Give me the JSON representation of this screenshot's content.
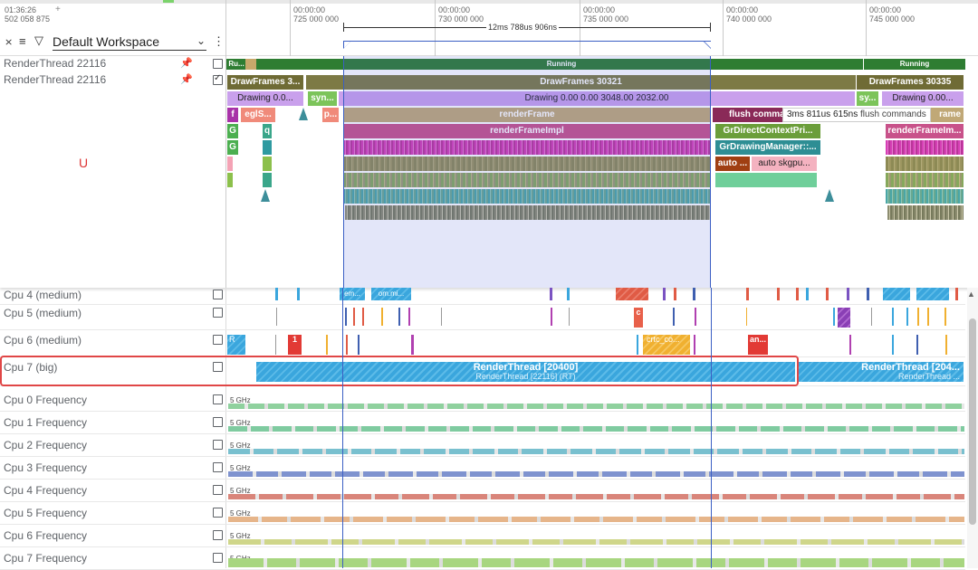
{
  "header": {
    "time_left": "01:36:26",
    "time_left_sub": "502 058 875",
    "plus": "+",
    "workspace": "Default Workspace",
    "ticks": [
      {
        "top": "00:00:00",
        "bottom": "725 000 000"
      },
      {
        "top": "00:00:00",
        "bottom": "730 000 000"
      },
      {
        "top": "00:00:00",
        "bottom": "735 000 000"
      },
      {
        "top": "00:00:00",
        "bottom": "740 000 000"
      },
      {
        "top": "00:00:00",
        "bottom": "745 000 000"
      }
    ],
    "span_label": "12ms 788us 906ns"
  },
  "tracks": {
    "thread_state": {
      "name": "RenderThread 22116",
      "state_a": "Ru...",
      "state_b": "Running",
      "state_c": "Running"
    },
    "thread_slices": {
      "name": "RenderThread 22116"
    },
    "marker": "U"
  },
  "slices": {
    "df1": "DrawFrames 3...",
    "df2": "DrawFrames 30321",
    "df3": "DrawFrames 30335",
    "drawing1": "Drawing  0.0...",
    "syn1": "syn...",
    "drawing2": "Drawing  0.00   0.00  3048.00  2032.00",
    "sy2": "sy...",
    "drawing3": "Drawing  0.00...",
    "f": "f",
    "egls": "eglS...",
    "p": "p...",
    "renderframe": "renderFrame",
    "flush": "flush comma",
    "frame_r": "rame",
    "g1": "G",
    "q": "q",
    "renderframeimpl": "renderFrameImpl",
    "grdirect": "GrDirectContextPri...",
    "renderframeimpl_r": "renderFrameIm...",
    "g2": "G",
    "grdrawing": "GrDrawingManager::...",
    "auto1": "auto ...",
    "auto2": "auto skgpu..."
  },
  "tooltip": {
    "duration": "3ms 811us 615ns",
    "name": "flush commands"
  },
  "cpu_tracks": [
    {
      "name": "Cpu 4 (medium)"
    },
    {
      "name": "Cpu 5 (medium)"
    },
    {
      "name": "Cpu 6 (medium)"
    },
    {
      "name": "Cpu 7 (big)"
    }
  ],
  "cpu_labels": {
    "c4a": "em...",
    "c4b": "om.mi...",
    "c5c": "c",
    "c6r": "R",
    "c6one": "1",
    "c6crtc": "crtc_co...",
    "c6an": "an...",
    "c7a_main": "RenderThread [20400]",
    "c7a_sub": "RenderThread [22116] (RT)",
    "c7b_main": "RenderThread [204...",
    "c7b_sub": "RenderThread ..."
  },
  "freq_tracks": [
    {
      "name": "Cpu 0 Frequency",
      "unit": "5 GHz",
      "color": "#8fd19e"
    },
    {
      "name": "Cpu 1 Frequency",
      "unit": "5 GHz",
      "color": "#7fcba0"
    },
    {
      "name": "Cpu 2 Frequency",
      "unit": "5 GHz",
      "color": "#79c0cf"
    },
    {
      "name": "Cpu 3 Frequency",
      "unit": "5 GHz",
      "color": "#7f93cf"
    },
    {
      "name": "Cpu 4 Frequency",
      "unit": "5 GHz",
      "color": "#d9857a"
    },
    {
      "name": "Cpu 5 Frequency",
      "unit": "5 GHz",
      "color": "#e6b58a"
    },
    {
      "name": "Cpu 6 Frequency",
      "unit": "5 GHz",
      "color": "#cfd68a"
    },
    {
      "name": "Cpu 7 Frequency",
      "unit": "5 GHz",
      "color": "#a8d680"
    }
  ]
}
